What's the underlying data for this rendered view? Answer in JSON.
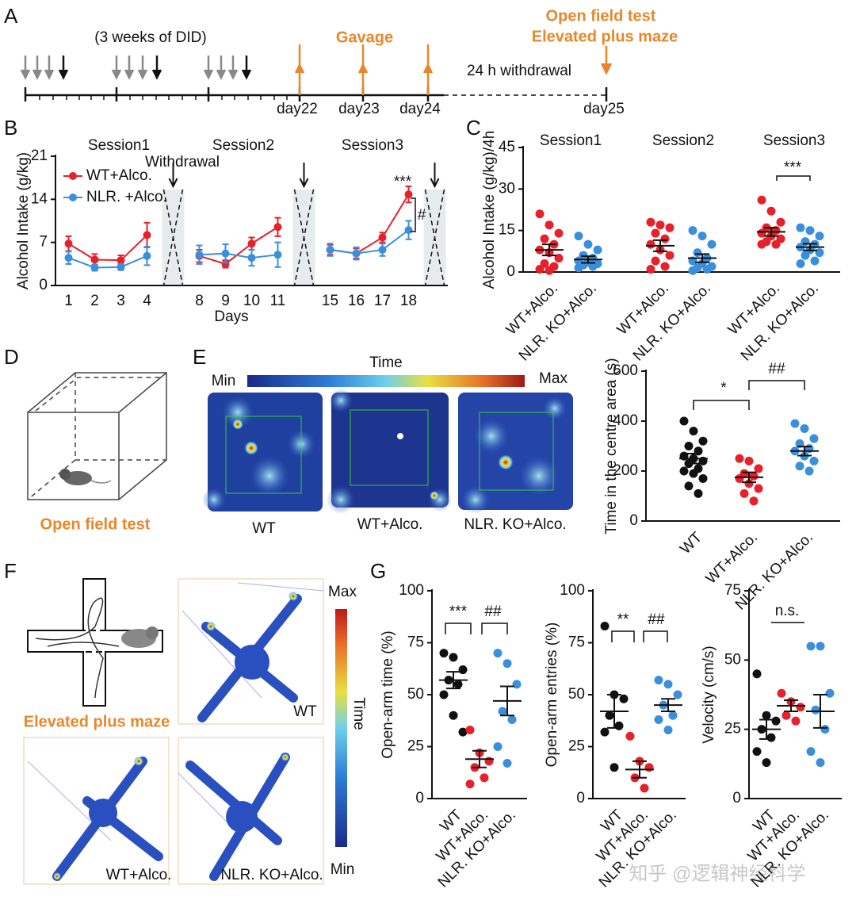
{
  "panel_labels": [
    "A",
    "B",
    "C",
    "D",
    "E",
    "F",
    "G"
  ],
  "timeline": {
    "note": "(3 weeks of DID)",
    "gavage": "Gavage",
    "tests": [
      "Open field test",
      "Elevated plus maze"
    ],
    "withdrawal": "24 h withdrawal",
    "days": [
      "day22",
      "day23",
      "day24",
      "day25"
    ]
  },
  "open_field": {
    "caption": "Open field test"
  },
  "heatmap_e": {
    "min": "Min",
    "max": "Max",
    "title": "Time",
    "labels": [
      "WT",
      "WT+Alco.",
      "NLR. KO+Alco."
    ]
  },
  "maze": {
    "caption": "Elevated plus maze",
    "max": "Max",
    "min": "Min",
    "title": "Time",
    "labels": [
      "WT",
      "WT+Alco.",
      "NLR. KO+Alco."
    ]
  },
  "watermark": "知乎 @逻辑神经科学",
  "chart_data": [
    {
      "type": "line",
      "y_label": "Alcohol Intake (g/kg)",
      "x_label": "Days",
      "categories": [
        "1",
        "2",
        "3",
        "4",
        null,
        "8",
        "9",
        "10",
        "11",
        null,
        "15",
        "16",
        "17",
        "18",
        null
      ],
      "series": [
        {
          "name": "WT+Alco.",
          "color": "#e8202a",
          "values": [
            6.8,
            4.2,
            4.1,
            8.2,
            null,
            4.8,
            3.5,
            6.8,
            9.5,
            null,
            5.8,
            5.2,
            7.8,
            14.8,
            null
          ],
          "errors": [
            1.2,
            0.9,
            0.8,
            2,
            null,
            1,
            0.6,
            1,
            1.5,
            null,
            0.8,
            0.8,
            0.8,
            1.3,
            null
          ]
        },
        {
          "name": "NLR. +Alco.",
          "color": "#3a8fdc",
          "values": [
            4.5,
            2.9,
            3.0,
            4.8,
            null,
            5,
            5.2,
            4.5,
            5.0,
            null,
            5.8,
            5.2,
            5.8,
            9.0,
            null
          ],
          "errors": [
            1,
            0.5,
            0.5,
            1.5,
            null,
            1.5,
            1.5,
            1.3,
            2,
            null,
            1,
            1,
            1,
            1.5,
            null
          ]
        }
      ],
      "ylim": [
        0,
        21
      ],
      "yticks": [
        0,
        7,
        14,
        21
      ],
      "legend": "top-left",
      "annotations": [
        "Session1",
        "Session2",
        "Session3",
        "Withdrawal",
        "***",
        "#"
      ]
    },
    {
      "type": "strip",
      "y_label": "Alcohol Intake (g/kg)/4h",
      "categories": [
        "WT+Alco.",
        "NLR. KO+Alco.",
        "WT+Alco.",
        "NLR. KO+Alco.",
        "WT+Alco.",
        "NLR. KO+Alco."
      ],
      "colors": [
        "#e8202a",
        "#3a8fdc",
        "#e8202a",
        "#3a8fdc",
        "#e8202a",
        "#3a8fdc"
      ],
      "points": [
        [
          21,
          17,
          14,
          12,
          10,
          8,
          7,
          5,
          3,
          2,
          1,
          0.5
        ],
        [
          13,
          10,
          8,
          6,
          5,
          4,
          3.5,
          3,
          2.5,
          2,
          1.5
        ],
        [
          18,
          17,
          16,
          14,
          12,
          10,
          8,
          6,
          4,
          2,
          1
        ],
        [
          15,
          13,
          10,
          7,
          5,
          4,
          3,
          2,
          1.5,
          1,
          0.5
        ],
        [
          26,
          22,
          18,
          16,
          15,
          14,
          13,
          12,
          11,
          10,
          10
        ],
        [
          16,
          15,
          13,
          11,
          10,
          9,
          8,
          7,
          6,
          4,
          3
        ]
      ],
      "means": [
        8,
        4.5,
        9.5,
        5,
        14.5,
        9
      ],
      "sems": [
        2,
        1.2,
        2,
        1.5,
        1.5,
        1.2
      ],
      "ylim": [
        0,
        45
      ],
      "yticks": [
        0,
        15,
        30,
        45
      ],
      "annotations": [
        "Session1",
        "Session2",
        "Session3",
        "***"
      ]
    },
    {
      "type": "strip",
      "y_label": "Time in the centre area (s)",
      "categories": [
        "WT",
        "WT+Alco.",
        "NLR. KO+Alco."
      ],
      "colors": [
        "#111111",
        "#e8202a",
        "#3a8fdc"
      ],
      "points": [
        [
          400,
          360,
          320,
          300,
          280,
          260,
          250,
          240,
          230,
          210,
          200,
          190,
          170,
          140,
          110
        ],
        [
          250,
          240,
          210,
          190,
          180,
          170,
          150,
          130,
          110,
          80
        ],
        [
          390,
          370,
          330,
          310,
          290,
          280,
          260,
          240,
          220,
          200
        ]
      ],
      "means": [
        250,
        175,
        280
      ],
      "sems": [
        20,
        20,
        18
      ],
      "ylim": [
        0,
        600
      ],
      "yticks": [
        0,
        200,
        400,
        600
      ],
      "annotations": [
        "*",
        "##"
      ]
    },
    {
      "type": "strip",
      "y_label": "Open-arm time (%)",
      "categories": [
        "WT",
        "WT+Alco.",
        "NLR. KO+Alco."
      ],
      "colors": [
        "#111111",
        "#e8202a",
        "#3a8fdc"
      ],
      "points": [
        [
          70,
          68,
          62,
          57,
          55,
          50,
          40,
          32
        ],
        [
          33,
          22,
          18,
          15,
          10,
          7
        ],
        [
          70,
          65,
          55,
          42,
          38,
          25,
          17
        ]
      ],
      "means": [
        57,
        19,
        47
      ],
      "sems": [
        4,
        4,
        7
      ],
      "ylim": [
        0,
        100
      ],
      "yticks": [
        0,
        25,
        50,
        75,
        100
      ],
      "annotations": [
        "***",
        "##"
      ]
    },
    {
      "type": "strip",
      "y_label": "Open-arm entries (%)",
      "categories": [
        "WT",
        "WT+Alco.",
        "NLR. KO+Alco."
      ],
      "colors": [
        "#111111",
        "#e8202a",
        "#3a8fdc"
      ],
      "points": [
        [
          83,
          50,
          48,
          40,
          35,
          32,
          15
        ],
        [
          30,
          18,
          15,
          10,
          5
        ],
        [
          57,
          55,
          50,
          45,
          40,
          38,
          33
        ]
      ],
      "means": [
        42,
        14,
        45
      ],
      "sems": [
        8,
        4,
        3
      ],
      "ylim": [
        0,
        100
      ],
      "yticks": [
        0,
        25,
        50,
        75,
        100
      ],
      "annotations": [
        "**",
        "##"
      ]
    },
    {
      "type": "strip",
      "y_label": "Velocity (cm/s)",
      "categories": [
        "WT",
        "WT+Alco.",
        "NLR. KO+Alco."
      ],
      "colors": [
        "#111111",
        "#e8202a",
        "#3a8fdc"
      ],
      "points": [
        [
          45,
          30,
          28,
          25,
          22,
          17,
          13
        ],
        [
          38,
          35,
          33,
          30,
          28
        ],
        [
          55,
          55,
          38,
          32,
          25,
          17,
          13
        ]
      ],
      "means": [
        25,
        33.5,
        31.5
      ],
      "sems": [
        3.5,
        2,
        6
      ],
      "ylim": [
        0,
        75
      ],
      "yticks": [
        0,
        25,
        50,
        75
      ],
      "annotations": [
        "n.s."
      ]
    }
  ]
}
